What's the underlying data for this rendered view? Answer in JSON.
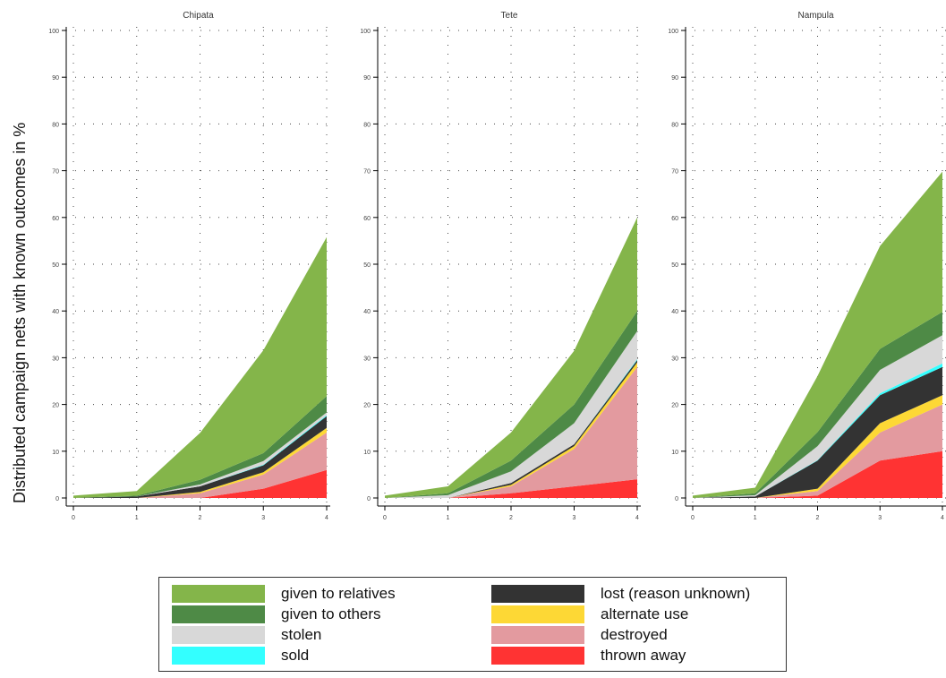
{
  "chart_data": {
    "type": "area",
    "stacked": true,
    "ylabel": "Distributed campaign nets with known outcomes in %",
    "grid": true,
    "legend_position": "bottom",
    "layers": [
      {
        "name": "thrown away",
        "color": "#ff3333"
      },
      {
        "name": "destroyed",
        "color": "#e39a9f"
      },
      {
        "name": "alternate use",
        "color": "#fdd835"
      },
      {
        "name": "lost (reason unknown)",
        "color": "#333333"
      },
      {
        "name": "sold",
        "color": "#33ffff"
      },
      {
        "name": "stolen",
        "color": "#d8d8d8"
      },
      {
        "name": "given to others",
        "color": "#4e8a46"
      },
      {
        "name": "given to relatives",
        "color": "#84b54a"
      }
    ],
    "panels": [
      {
        "title": "Chipata",
        "x": [
          0,
          1,
          2,
          3,
          4
        ],
        "ylim": [
          0,
          100
        ],
        "x_axis_title": "",
        "series": [
          {
            "name": "thrown away",
            "values": [
              0,
              0,
              0,
              2,
              6
            ]
          },
          {
            "name": "destroyed",
            "values": [
              0,
              0,
              1,
              3,
              8
            ]
          },
          {
            "name": "alternate use",
            "values": [
              0,
              0,
              0.3,
              0.5,
              1
            ]
          },
          {
            "name": "lost (reason unknown)",
            "values": [
              0,
              0.3,
              1.2,
              1.5,
              2.5
            ]
          },
          {
            "name": "sold",
            "values": [
              0,
              0,
              0,
              0.1,
              0.2
            ]
          },
          {
            "name": "stolen",
            "values": [
              0,
              0,
              0.4,
              0.8,
              0.6
            ]
          },
          {
            "name": "given to others",
            "values": [
              0,
              0.2,
              1,
              1.7,
              3.5
            ]
          },
          {
            "name": "given to relatives",
            "values": [
              0.5,
              1,
              10,
              22,
              34
            ]
          }
        ]
      },
      {
        "title": "Tete",
        "x": [
          0,
          1,
          2,
          3,
          4
        ],
        "ylim": [
          0,
          100
        ],
        "x_axis_title": "",
        "series": [
          {
            "name": "thrown away",
            "values": [
              0,
              0,
              1,
              2.5,
              4
            ]
          },
          {
            "name": "destroyed",
            "values": [
              0,
              0,
              1.5,
              8,
              24
            ]
          },
          {
            "name": "alternate use",
            "values": [
              0,
              0,
              0.3,
              0.6,
              1
            ]
          },
          {
            "name": "lost (reason unknown)",
            "values": [
              0,
              0,
              0.4,
              0.4,
              0.5
            ]
          },
          {
            "name": "sold",
            "values": [
              0,
              0,
              0,
              0,
              0.2
            ]
          },
          {
            "name": "stolen",
            "values": [
              0,
              0.6,
              2.5,
              4.5,
              6
            ]
          },
          {
            "name": "given to others",
            "values": [
              0,
              0.4,
              2.3,
              4,
              4.3
            ]
          },
          {
            "name": "given to relatives",
            "values": [
              0.5,
              1.5,
              6,
              11.5,
              20
            ]
          }
        ]
      },
      {
        "title": "Nampula",
        "x": [
          0,
          1,
          2,
          3,
          4
        ],
        "ylim": [
          0,
          100
        ],
        "x_axis_title": "",
        "series": [
          {
            "name": "thrown away",
            "values": [
              0,
              0,
              0.5,
              8,
              10
            ]
          },
          {
            "name": "destroyed",
            "values": [
              0,
              0,
              1,
              6,
              10
            ]
          },
          {
            "name": "alternate use",
            "values": [
              0,
              0,
              0.5,
              2,
              2
            ]
          },
          {
            "name": "lost (reason unknown)",
            "values": [
              0,
              0.3,
              6,
              6,
              6
            ]
          },
          {
            "name": "sold",
            "values": [
              0,
              0,
              0.1,
              0.4,
              0.8
            ]
          },
          {
            "name": "stolen",
            "values": [
              0,
              0.3,
              3,
              5,
              6
            ]
          },
          {
            "name": "given to others",
            "values": [
              0,
              0.4,
              3,
              4.5,
              5
            ]
          },
          {
            "name": "given to relatives",
            "values": [
              0.5,
              1.2,
              12,
              22,
              30
            ]
          }
        ]
      }
    ]
  }
}
